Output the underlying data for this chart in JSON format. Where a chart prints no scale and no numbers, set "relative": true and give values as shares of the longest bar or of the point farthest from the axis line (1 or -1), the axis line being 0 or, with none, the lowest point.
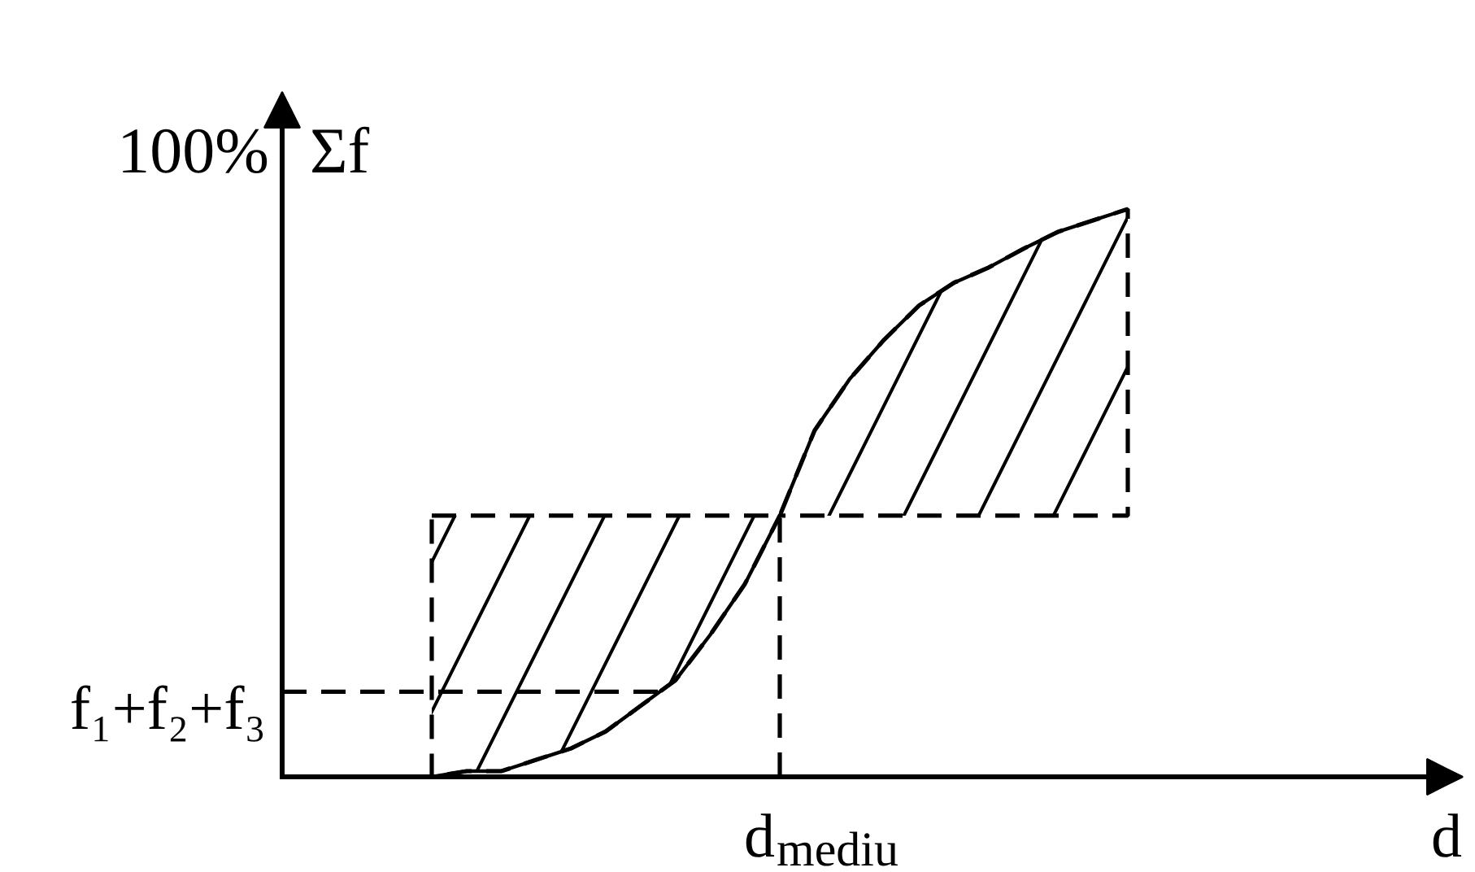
{
  "chart_data": {
    "type": "line",
    "relative": true,
    "categories": [
      null,
      null,
      null,
      null,
      null,
      null,
      null,
      null,
      null,
      null,
      null,
      null,
      null,
      null,
      null,
      null,
      null,
      null,
      null,
      null,
      null
    ],
    "series": [
      {
        "color": "#000000",
        "values": [
          0,
          0.01,
          0.01,
          0.03,
          0.05,
          0.08,
          0.125,
          0.17,
          0.25,
          0.34,
          0.46,
          0.61,
          0.7,
          0.77,
          0.83,
          0.87,
          0.897,
          0.93,
          0.96,
          0.98,
          1
        ],
        "lower": [
          0,
          0.01,
          0.01,
          0.03,
          0.05,
          0.08,
          0.125,
          0.17,
          0.25,
          0.34,
          0.46,
          0.46,
          0.46,
          0.46,
          0.46,
          0.46,
          0.46,
          0.46,
          0.46,
          0.46,
          0.46
        ],
        "upper": [
          0.46,
          0.46,
          0.46,
          0.46,
          0.46,
          0.46,
          0.46,
          0.46,
          0.46,
          0.46,
          0.46,
          0.61,
          0.7,
          0.77,
          0.83,
          0.87,
          0.897,
          0.93,
          0.96,
          0.98,
          1
        ]
      }
    ],
    "xlabel": "d",
    "ylabel": "Σf",
    "annotations": [
      "100%",
      "d$_{mediu}$"
    ],
    "ref_lines": [
      {
        "axis": "y",
        "value": 0.15,
        "label": "f₁+f₂+f₃",
        "line_style": "dashed"
      }
    ]
  }
}
